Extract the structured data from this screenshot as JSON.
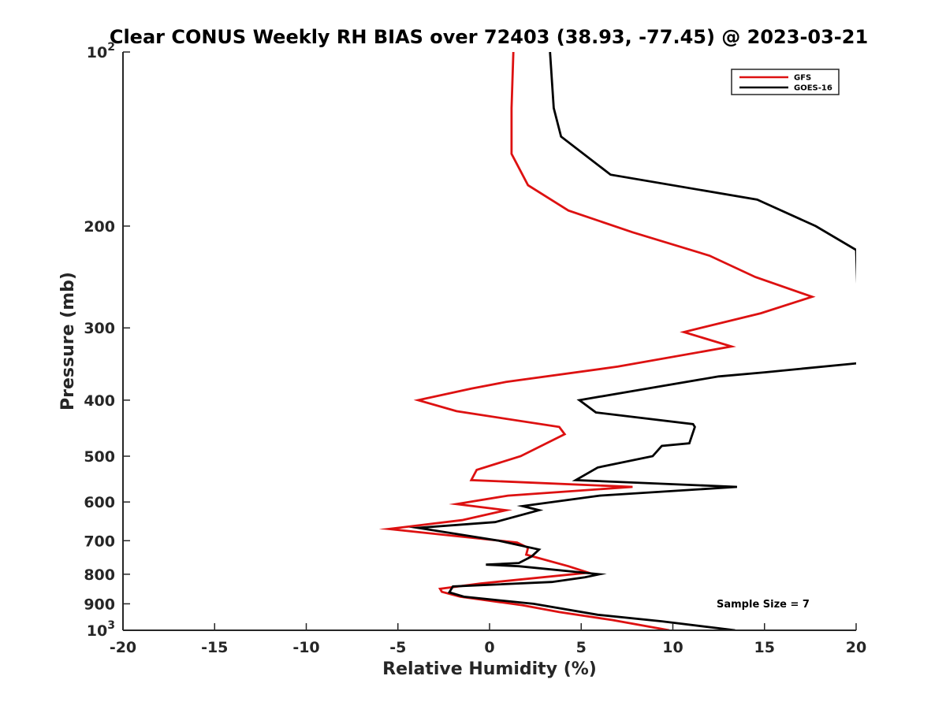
{
  "chart_data": {
    "type": "line",
    "title": "Clear CONUS Weekly RH BIAS over 72403 (38.93, -77.45) @ 2023-03-21",
    "xlabel": "Relative Humidity (%)",
    "ylabel": "Pressure (mb)",
    "xlim": [
      -20,
      20
    ],
    "ylim": [
      100,
      1000
    ],
    "y_scale": "log",
    "y_reversed": true,
    "grid": false,
    "legend_position": "top-right",
    "x_ticks": [
      {
        "value": -20,
        "label": "-20"
      },
      {
        "value": -15,
        "label": "-15"
      },
      {
        "value": -10,
        "label": "-10"
      },
      {
        "value": -5,
        "label": "-5"
      },
      {
        "value": 0,
        "label": "0"
      },
      {
        "value": 5,
        "label": "5"
      },
      {
        "value": 10,
        "label": "10"
      },
      {
        "value": 15,
        "label": "15"
      },
      {
        "value": 20,
        "label": "20"
      }
    ],
    "y_ticks": [
      {
        "value": 100,
        "base": "10",
        "exp": "2"
      },
      {
        "value": 200,
        "base": "200",
        "exp": ""
      },
      {
        "value": 300,
        "base": "300",
        "exp": ""
      },
      {
        "value": 400,
        "base": "400",
        "exp": ""
      },
      {
        "value": 500,
        "base": "500",
        "exp": ""
      },
      {
        "value": 600,
        "base": "600",
        "exp": ""
      },
      {
        "value": 700,
        "base": "700",
        "exp": ""
      },
      {
        "value": 800,
        "base": "800",
        "exp": ""
      },
      {
        "value": 900,
        "base": "900",
        "exp": ""
      },
      {
        "value": 1000,
        "base": "10",
        "exp": "3"
      }
    ],
    "series": [
      {
        "name": "GFS",
        "color": "#dd1111",
        "points": [
          [
            1.3,
            100
          ],
          [
            1.2,
            125
          ],
          [
            1.2,
            150
          ],
          [
            2.1,
            170
          ],
          [
            4.3,
            188
          ],
          [
            7.8,
            205
          ],
          [
            12.0,
            225
          ],
          [
            14.5,
            245
          ],
          [
            17.6,
            265
          ],
          [
            14.8,
            283
          ],
          [
            10.6,
            305
          ],
          [
            13.2,
            323
          ],
          [
            7.0,
            350
          ],
          [
            0.9,
            372
          ],
          [
            -1.0,
            382
          ],
          [
            -3.9,
            400
          ],
          [
            -1.8,
            418
          ],
          [
            3.8,
            445
          ],
          [
            4.1,
            458
          ],
          [
            1.7,
            500
          ],
          [
            -0.7,
            528
          ],
          [
            -1.0,
            550
          ],
          [
            7.8,
            565
          ],
          [
            1.0,
            585
          ],
          [
            -1.8,
            605
          ],
          [
            0.9,
            620
          ],
          [
            -1.5,
            645
          ],
          [
            -5.5,
            668
          ],
          [
            1.5,
            705
          ],
          [
            2.1,
            720
          ],
          [
            2.0,
            740
          ],
          [
            4.3,
            775
          ],
          [
            5.4,
            795
          ],
          [
            -0.5,
            830
          ],
          [
            -2.7,
            848
          ],
          [
            -2.6,
            858
          ],
          [
            -1.6,
            875
          ],
          [
            1.8,
            905
          ],
          [
            3.8,
            930
          ],
          [
            6.7,
            960
          ],
          [
            9.8,
            1000
          ]
        ]
      },
      {
        "name": "GOES-16",
        "color": "#000000",
        "points": [
          [
            3.3,
            100
          ],
          [
            3.5,
            125
          ],
          [
            3.9,
            140
          ],
          [
            6.6,
            163
          ],
          [
            14.6,
            180
          ],
          [
            17.8,
            200
          ],
          [
            20.0,
            220
          ],
          [
            20.2,
            345
          ],
          [
            15.0,
            358
          ],
          [
            12.5,
            364
          ],
          [
            9.0,
            380
          ],
          [
            4.9,
            400
          ],
          [
            5.8,
            420
          ],
          [
            11.1,
            440
          ],
          [
            11.2,
            445
          ],
          [
            10.9,
            475
          ],
          [
            9.4,
            480
          ],
          [
            8.9,
            500
          ],
          [
            5.9,
            523
          ],
          [
            4.7,
            550
          ],
          [
            13.5,
            565
          ],
          [
            6.0,
            585
          ],
          [
            1.8,
            610
          ],
          [
            2.7,
            620
          ],
          [
            0.3,
            650
          ],
          [
            -3.9,
            665
          ],
          [
            0.5,
            700
          ],
          [
            2.7,
            725
          ],
          [
            2.3,
            745
          ],
          [
            1.6,
            765
          ],
          [
            -0.2,
            770
          ],
          [
            1.6,
            775
          ],
          [
            6.0,
            800
          ],
          [
            5.2,
            810
          ],
          [
            3.4,
            825
          ],
          [
            -2.0,
            840
          ],
          [
            -2.2,
            860
          ],
          [
            -1.4,
            875
          ],
          [
            2.4,
            900
          ],
          [
            5.9,
            940
          ],
          [
            9.4,
            965
          ],
          [
            13.4,
            1000
          ]
        ]
      }
    ],
    "annotation": "Sample Size = 7"
  }
}
